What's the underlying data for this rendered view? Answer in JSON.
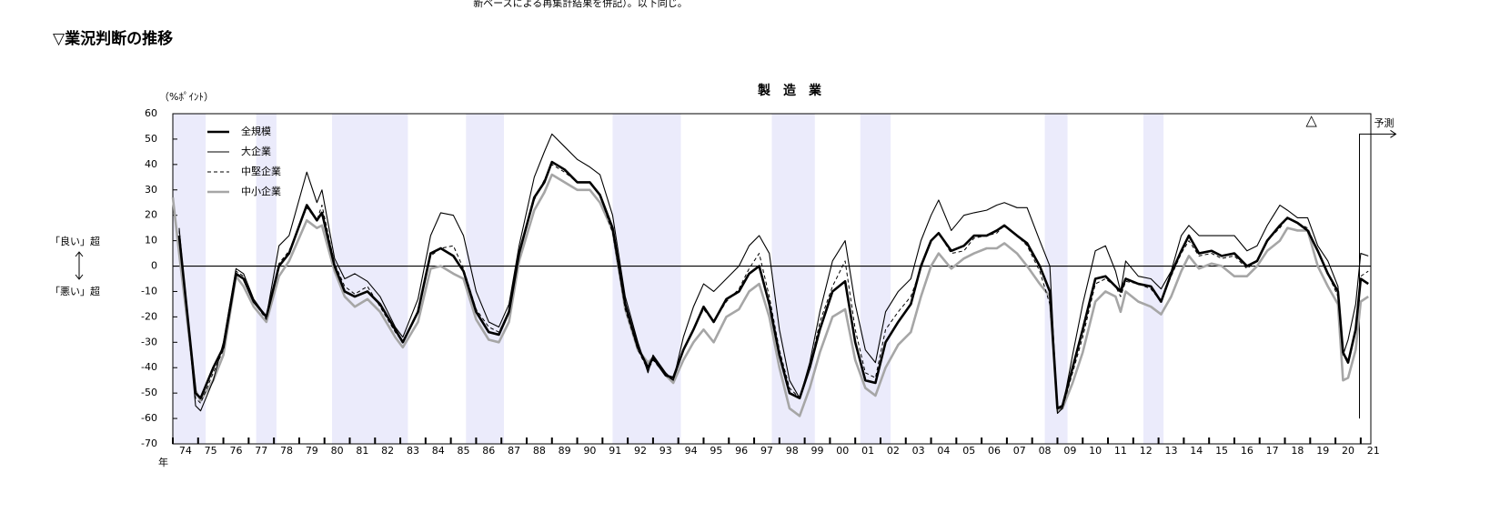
{
  "header_note": "新ベースによる再集計結果を併記）。以下同じ。",
  "section_title": "▽業況判断の推移",
  "chart_data": {
    "type": "line",
    "title": "製　造　業",
    "y_unit": "（%ﾎﾟｲﾝﾄ）",
    "x_unit": "年",
    "good_label": "「良い」超",
    "bad_label": "「悪い」超",
    "forecast_label": "予測",
    "forecast_start": 2020.95,
    "peak_marker": {
      "x": 2019.05,
      "label": "△"
    },
    "recession_bands": [
      [
        1974.0,
        1975.3
      ],
      [
        1977.3,
        1978.1
      ],
      [
        1980.3,
        1983.3
      ],
      [
        1985.6,
        1987.1
      ],
      [
        1991.4,
        1994.1
      ],
      [
        1997.7,
        1999.4
      ],
      [
        2001.2,
        2002.4
      ],
      [
        2008.5,
        2009.4
      ],
      [
        2012.4,
        2013.2
      ]
    ],
    "band_color": "#ebebfb",
    "xlim": [
      1974,
      2021.4
    ],
    "ylim": [
      -70,
      60
    ],
    "yticks": [
      60,
      50,
      40,
      30,
      20,
      10,
      0,
      -10,
      -20,
      -30,
      -40,
      -50,
      -60,
      -70
    ],
    "xticks": [
      {
        "value": 1974,
        "label": "74"
      },
      {
        "value": 1975,
        "label": "75"
      },
      {
        "value": 1976,
        "label": "76"
      },
      {
        "value": 1977,
        "label": "77"
      },
      {
        "value": 1978,
        "label": "78"
      },
      {
        "value": 1979,
        "label": "79"
      },
      {
        "value": 1980,
        "label": "80"
      },
      {
        "value": 1981,
        "label": "81"
      },
      {
        "value": 1982,
        "label": "82"
      },
      {
        "value": 1983,
        "label": "83"
      },
      {
        "value": 1984,
        "label": "84"
      },
      {
        "value": 1985,
        "label": "85"
      },
      {
        "value": 1986,
        "label": "86"
      },
      {
        "value": 1987,
        "label": "87"
      },
      {
        "value": 1988,
        "label": "88"
      },
      {
        "value": 1989,
        "label": "89"
      },
      {
        "value": 1990,
        "label": "90"
      },
      {
        "value": 1991,
        "label": "91"
      },
      {
        "value": 1992,
        "label": "92"
      },
      {
        "value": 1993,
        "label": "93"
      },
      {
        "value": 1994,
        "label": "94"
      },
      {
        "value": 1995,
        "label": "95"
      },
      {
        "value": 1996,
        "label": "96"
      },
      {
        "value": 1997,
        "label": "97"
      },
      {
        "value": 1998,
        "label": "98"
      },
      {
        "value": 1999,
        "label": "99"
      },
      {
        "value": 2000,
        "label": "00"
      },
      {
        "value": 2001,
        "label": "01"
      },
      {
        "value": 2002,
        "label": "02"
      },
      {
        "value": 2003,
        "label": "03"
      },
      {
        "value": 2004,
        "label": "04"
      },
      {
        "value": 2005,
        "label": "05"
      },
      {
        "value": 2006,
        "label": "06"
      },
      {
        "value": 2007,
        "label": "07"
      },
      {
        "value": 2008,
        "label": "08"
      },
      {
        "value": 2009,
        "label": "09"
      },
      {
        "value": 2010,
        "label": "10"
      },
      {
        "value": 2011,
        "label": "11"
      },
      {
        "value": 2012,
        "label": "12"
      },
      {
        "value": 2013,
        "label": "13"
      },
      {
        "value": 2014,
        "label": "14"
      },
      {
        "value": 2015,
        "label": "15"
      },
      {
        "value": 2016,
        "label": "16"
      },
      {
        "value": 2017,
        "label": "17"
      },
      {
        "value": 2018,
        "label": "18"
      },
      {
        "value": 2019,
        "label": "19"
      },
      {
        "value": 2020,
        "label": "20"
      },
      {
        "value": 2021,
        "label": "21"
      }
    ],
    "x": [
      1974.0,
      1974.25,
      1974.9,
      1975.1,
      1975.6,
      1976.0,
      1976.5,
      1976.8,
      1977.2,
      1977.7,
      1978.2,
      1978.6,
      1979.3,
      1979.7,
      1979.9,
      1980.4,
      1980.8,
      1981.2,
      1981.7,
      1982.2,
      1982.8,
      1983.1,
      1983.7,
      1984.2,
      1984.6,
      1985.1,
      1985.5,
      1986.0,
      1986.5,
      1986.9,
      1987.3,
      1987.7,
      1988.3,
      1988.7,
      1989.0,
      1989.5,
      1990.0,
      1990.5,
      1990.9,
      1991.4,
      1991.9,
      1992.4,
      1992.8,
      1993.0,
      1993.5,
      1993.8,
      1994.2,
      1994.6,
      1995.0,
      1995.4,
      1995.9,
      1996.4,
      1996.8,
      1997.2,
      1997.6,
      1998.0,
      1998.4,
      1998.8,
      1999.2,
      1999.6,
      2000.1,
      2000.6,
      2001.0,
      2001.4,
      2001.8,
      2002.2,
      2002.7,
      2003.2,
      2003.6,
      2004.0,
      2004.3,
      2004.8,
      2005.3,
      2005.7,
      2006.2,
      2006.6,
      2006.9,
      2007.4,
      2007.8,
      2008.3,
      2008.7,
      2009.0,
      2009.2,
      2009.6,
      2010.0,
      2010.5,
      2010.9,
      2011.3,
      2011.5,
      2011.7,
      2012.2,
      2012.7,
      2013.1,
      2013.5,
      2013.9,
      2014.2,
      2014.6,
      2015.1,
      2015.5,
      2016.0,
      2016.5,
      2016.9,
      2017.3,
      2017.8,
      2018.1,
      2018.5,
      2018.9,
      2019.3,
      2019.7,
      2020.1,
      2020.3,
      2020.5,
      2020.8,
      2021.0,
      2021.3
    ],
    "series": [
      {
        "name": "全規模",
        "color": "#000000",
        "line_width": 2.6,
        "dashed": false,
        "values": [
          null,
          12,
          -50,
          -52,
          -40,
          -32,
          -3,
          -5,
          -14,
          -20,
          0,
          5,
          24,
          18,
          21,
          0,
          -10,
          -12,
          -10,
          -15,
          -25,
          -30,
          -18,
          5,
          7,
          4,
          -2,
          -18,
          -26,
          -27,
          -18,
          5,
          27,
          33,
          41,
          38,
          33,
          33,
          28,
          15,
          -15,
          -32,
          -40,
          -36,
          -43,
          -44,
          -33,
          -25,
          -16,
          -22,
          -13,
          -10,
          -3,
          0,
          -15,
          -35,
          -50,
          -52,
          -40,
          -25,
          -10,
          -6,
          -30,
          -45,
          -46,
          -30,
          -22,
          -15,
          0,
          10,
          13,
          6,
          8,
          12,
          12,
          14,
          16,
          12,
          9,
          0,
          -10,
          -56,
          -55,
          -40,
          -25,
          -5,
          -4,
          -8,
          -10,
          -5,
          -7,
          -8,
          -14,
          -3,
          6,
          12,
          5,
          6,
          4,
          5,
          0,
          2,
          10,
          16,
          19,
          17,
          14,
          6,
          -3,
          -10,
          -34,
          -38,
          -25,
          -5,
          -7
        ]
      },
      {
        "name": "大企業",
        "color": "#000000",
        "line_width": 1.1,
        "dashed": false,
        "values": [
          null,
          15,
          -55,
          -57,
          -45,
          -30,
          -1,
          -3,
          -13,
          -20,
          8,
          12,
          37,
          25,
          30,
          3,
          -5,
          -3,
          -6,
          -12,
          -24,
          -28,
          -13,
          12,
          21,
          20,
          12,
          -10,
          -22,
          -24,
          -15,
          8,
          35,
          45,
          52,
          47,
          42,
          39,
          36,
          20,
          -12,
          -30,
          -42,
          -35,
          -42,
          -45,
          -28,
          -16,
          -7,
          -10,
          -5,
          0,
          8,
          12,
          5,
          -25,
          -45,
          -52,
          -38,
          -18,
          2,
          10,
          -15,
          -33,
          -38,
          -18,
          -10,
          -5,
          10,
          20,
          26,
          14,
          20,
          21,
          22,
          24,
          25,
          23,
          23,
          10,
          0,
          -58,
          -56,
          -35,
          -15,
          6,
          8,
          -2,
          -10,
          2,
          -4,
          -5,
          -9,
          -2,
          12,
          16,
          12,
          12,
          12,
          12,
          6,
          8,
          16,
          24,
          22,
          19,
          19,
          8,
          2,
          -8,
          -35,
          -29,
          -15,
          5,
          4
        ]
      },
      {
        "name": "中堅企業",
        "color": "#000000",
        "line_width": 1,
        "dashed": true,
        "values": [
          null,
          14,
          -52,
          -54,
          -42,
          -33,
          -2,
          -4,
          -14,
          -21,
          1,
          6,
          23,
          18,
          24,
          1,
          -8,
          -11,
          -8,
          -16,
          -26,
          -30,
          -18,
          4,
          7,
          8,
          -1,
          -17,
          -24,
          -26,
          -18,
          5,
          26,
          34,
          40,
          37,
          33,
          33,
          28,
          13,
          -17,
          -33,
          -41,
          -37,
          -43,
          -45,
          -33,
          -25,
          -17,
          -22,
          -14,
          -9,
          -1,
          5,
          -12,
          -33,
          -48,
          -52,
          -40,
          -22,
          -8,
          2,
          -25,
          -42,
          -44,
          -25,
          -18,
          -12,
          -1,
          10,
          13,
          5,
          6,
          11,
          12,
          13,
          16,
          12,
          8,
          -2,
          -15,
          -56,
          -56,
          -42,
          -28,
          -7,
          -5,
          -8,
          -12,
          -6,
          -7,
          -9,
          -14,
          -4,
          5,
          10,
          4,
          5,
          3,
          4,
          -1,
          2,
          10,
          15,
          19,
          17,
          15,
          6,
          -3,
          -12,
          -34,
          -37,
          -25,
          -4,
          -2
        ]
      },
      {
        "name": "中小企業",
        "color": "#a6a6a6",
        "line_width": 2.6,
        "dashed": false,
        "values": [
          27,
          5,
          -49,
          -53,
          -45,
          -35,
          -4,
          -8,
          -16,
          -22,
          -4,
          2,
          18,
          15,
          16,
          -2,
          -12,
          -16,
          -13,
          -18,
          -28,
          -32,
          -22,
          -1,
          0,
          -3,
          -5,
          -21,
          -29,
          -30,
          -22,
          2,
          22,
          29,
          36,
          33,
          30,
          30,
          25,
          14,
          -17,
          -33,
          -38,
          -36,
          -43,
          -46,
          -37,
          -30,
          -25,
          -30,
          -20,
          -17,
          -10,
          -7,
          -20,
          -40,
          -56,
          -59,
          -48,
          -34,
          -20,
          -17,
          -37,
          -48,
          -51,
          -40,
          -31,
          -26,
          -12,
          0,
          5,
          -1,
          3,
          5,
          7,
          7,
          9,
          5,
          0,
          -7,
          -12,
          -57,
          -56,
          -46,
          -34,
          -14,
          -10,
          -12,
          -18,
          -10,
          -14,
          -16,
          -19,
          -12,
          -2,
          4,
          -1,
          1,
          0,
          -4,
          -4,
          0,
          6,
          10,
          15,
          14,
          14,
          0,
          -8,
          -15,
          -45,
          -44,
          -33,
          -14,
          -12
        ]
      }
    ]
  }
}
